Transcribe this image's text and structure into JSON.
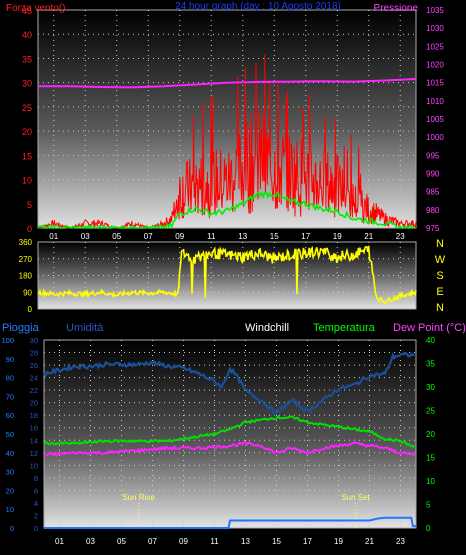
{
  "colors": {
    "wind": "#ff0000",
    "gust": "#00ee00",
    "pressure": "#ff22ff",
    "direction": "#ffff00",
    "rain": "#1e78ff",
    "humidity": "#1a4f9a",
    "temperature": "#00e000",
    "dewpoint": "#ff22ff",
    "rain_axis": "#1f80ff",
    "humidity_axis": "#2a55c0",
    "title": "#1a3cff",
    "label_white": "#ffffff",
    "label_green": "#00ff00",
    "label_pink": "#ff44ff",
    "label_yellow": "#ffff00",
    "label_red": "#ff2020"
  },
  "chart_data": [
    {
      "id": "wind_pressure",
      "type": "line",
      "title": "24 hour graph (day : 10 Agosto 2018)",
      "ylabel_left": "Forza vento()",
      "ylabel_right": "Pressione",
      "ylim_left": [
        0,
        45
      ],
      "ylim_right": [
        975,
        1035
      ],
      "yticks_left": [
        "0",
        "5",
        "10",
        "15",
        "20",
        "25",
        "30",
        "35",
        "40",
        "45"
      ],
      "yticks_right": [
        "975",
        "980",
        "985",
        "990",
        "995",
        "1000",
        "1005",
        "1010",
        "1015",
        "1020",
        "1025",
        "1030",
        "1035"
      ],
      "xticks": [
        "01",
        "03",
        "05",
        "07",
        "09",
        "11",
        "13",
        "15",
        "17",
        "19",
        "21",
        "23"
      ],
      "xlim": [
        0,
        24
      ],
      "grid": true,
      "series": [
        {
          "key": "wind",
          "x": [
            0,
            1,
            2,
            3,
            4,
            5,
            6,
            7,
            8,
            8.5,
            9,
            10,
            11,
            12,
            13,
            14,
            15,
            16,
            17,
            18,
            19,
            20,
            21,
            22,
            23,
            24
          ],
          "values": [
            0,
            1,
            0,
            1,
            1,
            0,
            1,
            0,
            1,
            2,
            8,
            9,
            10,
            10,
            13,
            15,
            13,
            12,
            11,
            10,
            9,
            6,
            4,
            2,
            1,
            1
          ]
        },
        {
          "key": "gust",
          "x": [
            0,
            1,
            2,
            3,
            4,
            5,
            6,
            7,
            8,
            8.5,
            9,
            10,
            11,
            12,
            13,
            14,
            15,
            16,
            17,
            18,
            19,
            20,
            21,
            22,
            23,
            24
          ],
          "values": [
            0,
            0,
            0,
            0,
            0,
            0,
            0,
            0,
            0,
            0.5,
            3,
            4,
            3,
            3.5,
            5,
            7,
            7,
            5.5,
            5,
            4,
            3.5,
            2,
            1.5,
            1,
            0,
            0
          ]
        },
        {
          "key": "pressure",
          "x": [
            0,
            2,
            4,
            6,
            8,
            10,
            12,
            14,
            16,
            18,
            20,
            22,
            23,
            24
          ],
          "values": [
            1014,
            1014,
            1013.8,
            1013.7,
            1014,
            1014.5,
            1015,
            1015.2,
            1015.3,
            1015.4,
            1015.3,
            1015.6,
            1015.8,
            1016
          ]
        }
      ]
    },
    {
      "id": "wind_direction",
      "type": "line",
      "ylim": [
        0,
        360
      ],
      "yticks": [
        "0",
        "90",
        "180",
        "270",
        "360"
      ],
      "compass_labels": [
        "N",
        "W",
        "S",
        "E",
        "N"
      ],
      "xlim": [
        0,
        24
      ],
      "grid": true,
      "series": [
        {
          "key": "direction",
          "x": [
            0,
            1,
            2,
            3,
            4,
            5,
            6,
            7,
            8,
            8.9,
            9.1,
            10,
            11,
            12,
            13,
            14,
            15,
            16,
            17,
            18,
            19,
            20,
            21,
            21.5,
            22,
            23,
            24
          ],
          "values": [
            90,
            80,
            85,
            80,
            90,
            75,
            90,
            85,
            90,
            80,
            300,
            270,
            300,
            290,
            280,
            300,
            270,
            290,
            300,
            310,
            280,
            290,
            320,
            60,
            40,
            70,
            90
          ]
        }
      ]
    },
    {
      "id": "climate",
      "type": "line",
      "labels": {
        "rain": "Pioggia",
        "humidity": "Umidità",
        "windchill": "Windchill",
        "temperature": "Temperatura",
        "dewpoint": "Dew Point (°C)"
      },
      "ylim_rain": [
        0,
        100
      ],
      "ylim_humidity": [
        0,
        30
      ],
      "ylim_temp": [
        0,
        40
      ],
      "yticks_rain": [
        "0",
        "10",
        "20",
        "30",
        "40",
        "50",
        "60",
        "70",
        "80",
        "90",
        "100"
      ],
      "yticks_humidity": [
        "0",
        "2",
        "4",
        "6",
        "8",
        "10",
        "12",
        "14",
        "16",
        "18",
        "20",
        "22",
        "24",
        "26",
        "28",
        "30"
      ],
      "yticks_temp": [
        "0",
        "5",
        "10",
        "15",
        "20",
        "25",
        "30",
        "35",
        "40"
      ],
      "xticks": [
        "01",
        "03",
        "05",
        "07",
        "09",
        "11",
        "13",
        "15",
        "17",
        "19",
        "21",
        "23"
      ],
      "xlim": [
        0,
        24
      ],
      "annotations": [
        {
          "text": "Sun Rise",
          "x": 6.1
        },
        {
          "text": "Sun Set",
          "x": 20.1
        }
      ],
      "series": [
        {
          "key": "rain",
          "x": [
            0,
            11.9,
            12,
            21,
            21.5,
            22,
            23,
            23.7,
            23.8,
            24
          ],
          "values": [
            0,
            0,
            4,
            4,
            5,
            5.5,
            5.5,
            5.5,
            1,
            1
          ]
        },
        {
          "key": "humidity",
          "x": [
            0,
            1,
            2,
            3,
            4,
            5,
            6,
            7,
            8,
            9,
            10,
            11,
            11.5,
            12,
            12.5,
            13,
            14,
            15,
            16,
            17,
            18,
            19,
            20,
            21,
            22,
            22.5,
            23,
            24
          ],
          "values": [
            82,
            84,
            86,
            86,
            87,
            87,
            87,
            88,
            86,
            85,
            82,
            78,
            75,
            85,
            80,
            73,
            68,
            61,
            68,
            62,
            68,
            74,
            76,
            81,
            82,
            91,
            92,
            92
          ]
        },
        {
          "key": "temperature",
          "x": [
            0,
            2,
            4,
            6,
            8,
            10,
            11,
            12,
            13,
            14,
            15,
            16,
            17,
            18,
            20,
            21,
            22,
            23,
            24
          ],
          "values": [
            18,
            18,
            18.5,
            18.5,
            18.5,
            19.5,
            20,
            21,
            22.5,
            23,
            23.5,
            23.5,
            22.5,
            22,
            21,
            20.5,
            19,
            18.5,
            17
          ]
        },
        {
          "key": "dewpoint",
          "x": [
            0,
            2,
            4,
            6,
            8,
            10,
            12,
            13,
            14,
            15,
            16,
            17,
            18,
            20,
            22,
            23,
            24
          ],
          "values": [
            15.5,
            16,
            16,
            16.5,
            17,
            17,
            17.5,
            18,
            17.5,
            16,
            17,
            16,
            17,
            18,
            17,
            16,
            15.5
          ]
        }
      ]
    }
  ]
}
